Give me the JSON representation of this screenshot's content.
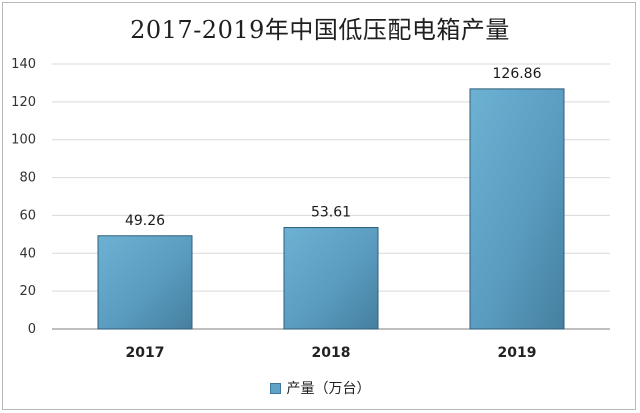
{
  "chart_data": {
    "type": "bar",
    "title": "2017-2019年中国低压配电箱产量",
    "categories": [
      "2017",
      "2018",
      "2019"
    ],
    "series": [
      {
        "name": "产量（万台）",
        "values": [
          49.26,
          53.61,
          126.86
        ]
      }
    ],
    "data_labels": [
      "49.26",
      "53.61",
      "126.86"
    ],
    "y_ticks": [
      "0",
      "20",
      "40",
      "60",
      "80",
      "100",
      "120",
      "140"
    ],
    "ylim": [
      0,
      140
    ],
    "ytick_step": 20,
    "xlabel": "",
    "ylabel": "",
    "grid": true,
    "legend_position": "bottom",
    "colors": {
      "bar": "#5fa3c6",
      "bar_dark": "#3f7290",
      "grid": "#d9d9d9",
      "axis": "#7f7f7f"
    }
  }
}
